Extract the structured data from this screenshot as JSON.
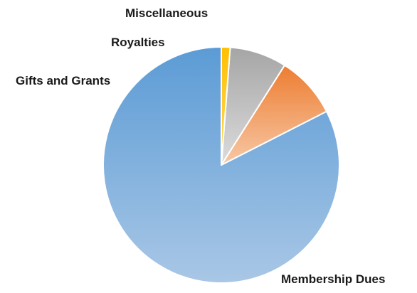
{
  "chart_data": {
    "type": "pie",
    "title": "",
    "slices": [
      {
        "label": "Membership Dues",
        "value": 82.5,
        "color_light": "#a9c7e6",
        "color_dark": "#5b9bd5"
      },
      {
        "label": "Gifts and Grants",
        "value": 8.5,
        "color_light": "#f7c8a6",
        "color_dark": "#ed7d31"
      },
      {
        "label": "Royalties",
        "value": 7.8,
        "color_light": "#dcdcdc",
        "color_dark": "#a5a5a5"
      },
      {
        "label": "Miscellaneous",
        "value": 1.2,
        "color_light": "#ffd966",
        "color_dark": "#ffc000"
      }
    ],
    "legend": "none",
    "data_labels": "outside"
  }
}
